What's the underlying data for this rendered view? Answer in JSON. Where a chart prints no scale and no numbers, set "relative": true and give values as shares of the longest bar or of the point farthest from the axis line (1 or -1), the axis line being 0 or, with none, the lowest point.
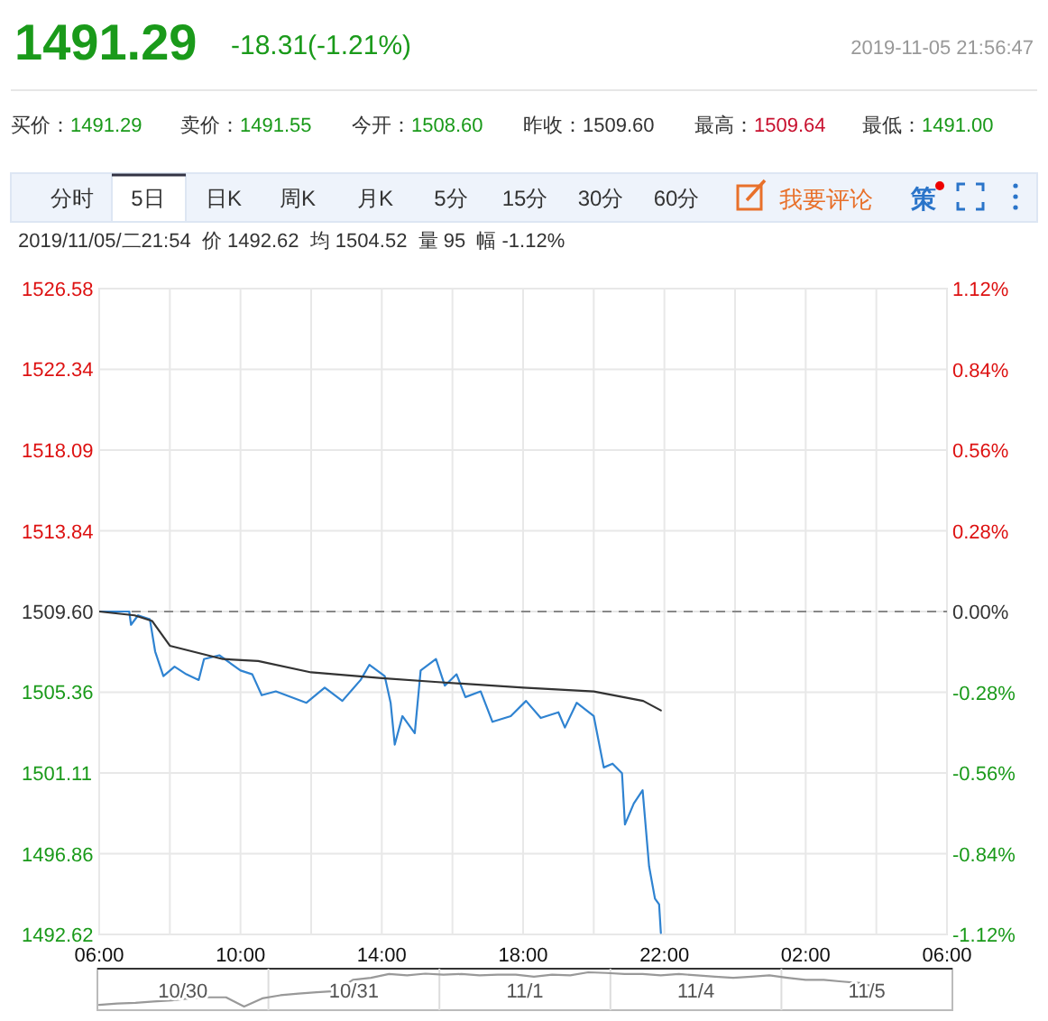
{
  "chart_data": [
    {
      "type": "line",
      "annotations": [
        "1491.29",
        "-18.31(-1.21%)",
        "2019-11-05 21:56:47",
        "买价：1491.29",
        "卖价：1491.55",
        "今开：1508.60",
        "昨收：1509.60",
        "最高：1509.64",
        "最低：1491.00",
        "分时",
        "5日",
        "日K",
        "周K",
        "月K",
        "5分",
        "15分",
        "30分",
        "60分",
        "我要评论",
        "策",
        "2019/11/05/二21:54  价 1492.62  均 1504.52  量 95  幅 -1.12%"
      ],
      "series": [
        {
          "color": "#2f83d1",
          "x": [
            "2019-11-05T06:00",
            "2019-11-05T06:51",
            "2019-11-05T06:54",
            "2019-11-05T07:06",
            "2019-11-05T07:26",
            "2019-11-05T07:35",
            "2019-11-05T07:49",
            "2019-11-05T08:08",
            "2019-11-05T08:28",
            "2019-11-05T08:49",
            "2019-11-05T08:58",
            "2019-11-05T09:24",
            "2019-11-05T10:00",
            "2019-11-05T10:20",
            "2019-11-05T10:36",
            "2019-11-05T11:00",
            "2019-11-05T11:52",
            "2019-11-05T12:23",
            "2019-11-05T12:53",
            "2019-11-05T13:24",
            "2019-11-05T13:39",
            "2019-11-05T14:05",
            "2019-11-05T14:15",
            "2019-11-05T14:22",
            "2019-11-05T14:35",
            "2019-11-05T14:56",
            "2019-11-05T15:06",
            "2019-11-05T15:32",
            "2019-11-05T15:47",
            "2019-11-05T16:07",
            "2019-11-05T16:22",
            "2019-11-05T16:48",
            "2019-11-05T17:08",
            "2019-11-05T17:39",
            "2019-11-05T18:05",
            "2019-11-05T18:30",
            "2019-11-05T19:00",
            "2019-11-05T19:11",
            "2019-11-05T19:31",
            "2019-11-05T20:00",
            "2019-11-05T20:17",
            "2019-11-05T20:32",
            "2019-11-05T20:48",
            "2019-11-05T20:53",
            "2019-11-05T21:08",
            "2019-11-05T21:23",
            "2019-11-05T21:34",
            "2019-11-05T21:44",
            "2019-11-05T21:51",
            "2019-11-05T21:54"
          ],
          "values": [
            1509.6,
            1509.6,
            1508.9,
            1509.4,
            1509.2,
            1507.5,
            1506.2,
            1506.7,
            1506.3,
            1506.0,
            1507.1,
            1507.3,
            1506.5,
            1506.3,
            1505.2,
            1505.4,
            1504.8,
            1505.6,
            1504.9,
            1506.0,
            1506.8,
            1506.2,
            1504.8,
            1502.6,
            1504.1,
            1503.2,
            1506.5,
            1507.1,
            1505.7,
            1506.3,
            1505.1,
            1505.4,
            1503.8,
            1504.1,
            1504.9,
            1504.0,
            1504.3,
            1503.5,
            1504.8,
            1504.1,
            1501.4,
            1501.6,
            1501.1,
            1498.4,
            1499.5,
            1500.2,
            1496.2,
            1494.5,
            1494.2,
            1492.7
          ]
        },
        {
          "color": "#333333",
          "x": [
            "2019-11-05T06:00",
            "2019-11-05T07:00",
            "2019-11-05T07:30",
            "2019-11-05T08:00",
            "2019-11-05T09:30",
            "2019-11-05T10:30",
            "2019-11-05T12:00",
            "2019-11-05T14:00",
            "2019-11-05T15:30",
            "2019-11-05T18:00",
            "2019-11-05T20:00",
            "2019-11-05T21:24",
            "2019-11-05T21:54"
          ],
          "values": [
            1509.6,
            1509.4,
            1509.1,
            1507.8,
            1507.1,
            1507.0,
            1506.4,
            1506.1,
            1505.9,
            1505.6,
            1505.4,
            1504.9,
            1504.4
          ]
        }
      ],
      "xlim": [
        "2019-11-05T06:00",
        "2019-11-06T06:00"
      ],
      "xticks": [
        {
          "value": "2019-11-05T06:00",
          "label": "06:00"
        },
        {
          "value": "2019-11-05T08:00",
          "label": null
        },
        {
          "value": "2019-11-05T10:00",
          "label": "10:00"
        },
        {
          "value": "2019-11-05T12:00",
          "label": null
        },
        {
          "value": "2019-11-05T14:00",
          "label": "14:00"
        },
        {
          "value": "2019-11-05T16:00",
          "label": null
        },
        {
          "value": "2019-11-05T18:00",
          "label": "18:00"
        },
        {
          "value": "2019-11-05T20:00",
          "label": null
        },
        {
          "value": "2019-11-05T22:00",
          "label": "22:00"
        },
        {
          "value": "2019-11-06T00:00",
          "label": null
        },
        {
          "value": "2019-11-06T02:00",
          "label": "02:00"
        },
        {
          "value": "2019-11-06T04:00",
          "label": null
        },
        {
          "value": "2019-11-06T06:00",
          "label": "06:00"
        }
      ],
      "ylim": [
        1492.62,
        1526.58
      ],
      "yticks": [
        1492.62,
        1496.86,
        1501.11,
        1505.36,
        {
          "value": 1509.6,
          "label": "1509.60"
        },
        1513.84,
        1518.09,
        1522.34,
        1526.58
      ],
      "y2lim": [
        -1.12,
        1.12
      ],
      "y2ticks": [
        {
          "value": -1.12,
          "label": "-1.12%"
        },
        {
          "value": -0.84,
          "label": "-0.84%"
        },
        {
          "value": -0.56,
          "label": "-0.56%"
        },
        {
          "value": -0.28,
          "label": "-0.28%"
        },
        {
          "value": 0,
          "label": "0.00%"
        },
        {
          "value": 0.28,
          "label": "0.28%"
        },
        {
          "value": 0.56,
          "label": "0.56%"
        },
        {
          "value": 0.84,
          "label": "0.84%"
        },
        {
          "value": 1.12,
          "label": "1.12%"
        }
      ],
      "ref_lines": [
        {
          "axis": "y",
          "value": 1509.6,
          "color": "#888888",
          "line_style": "dashed"
        }
      ],
      "grid": true,
      "line_style": "solid"
    },
    {
      "type": "line",
      "relative": true,
      "annotations": [
        "10/30",
        "10/31",
        "11/1",
        "11/4",
        "11/5"
      ],
      "categories": [
        null,
        null,
        null,
        null,
        null,
        null,
        null,
        null,
        null,
        null,
        null,
        null,
        null,
        null,
        null,
        null,
        null,
        null,
        null,
        null,
        null,
        null,
        null,
        null,
        null,
        null,
        null,
        null,
        null,
        null,
        null,
        null,
        null,
        null,
        null,
        null,
        null,
        null,
        null,
        null,
        null,
        null,
        null,
        null,
        null,
        null,
        null,
        null
      ],
      "series": [
        {
          "color": "#999999",
          "values": [
            0.05,
            0.09,
            0.11,
            0.15,
            0.18,
            0.24,
            0.27,
            0.27,
            0,
            0.24,
            0.33,
            0.38,
            0.42,
            0.45,
            0.78,
            0.84,
            0.95,
            0.91,
            0.96,
            0.93,
            0.95,
            0.91,
            0.93,
            0.93,
            0.87,
            0.93,
            0.91,
            1,
            0.98,
            0.95,
            0.95,
            0.91,
            0.95,
            0.91,
            0.87,
            0.84,
            0.87,
            0.91,
            0.84,
            0.78,
            0.78,
            0.73,
            0.69,
            0.55,
            null,
            null,
            null,
            null
          ]
        }
      ]
    }
  ]
}
